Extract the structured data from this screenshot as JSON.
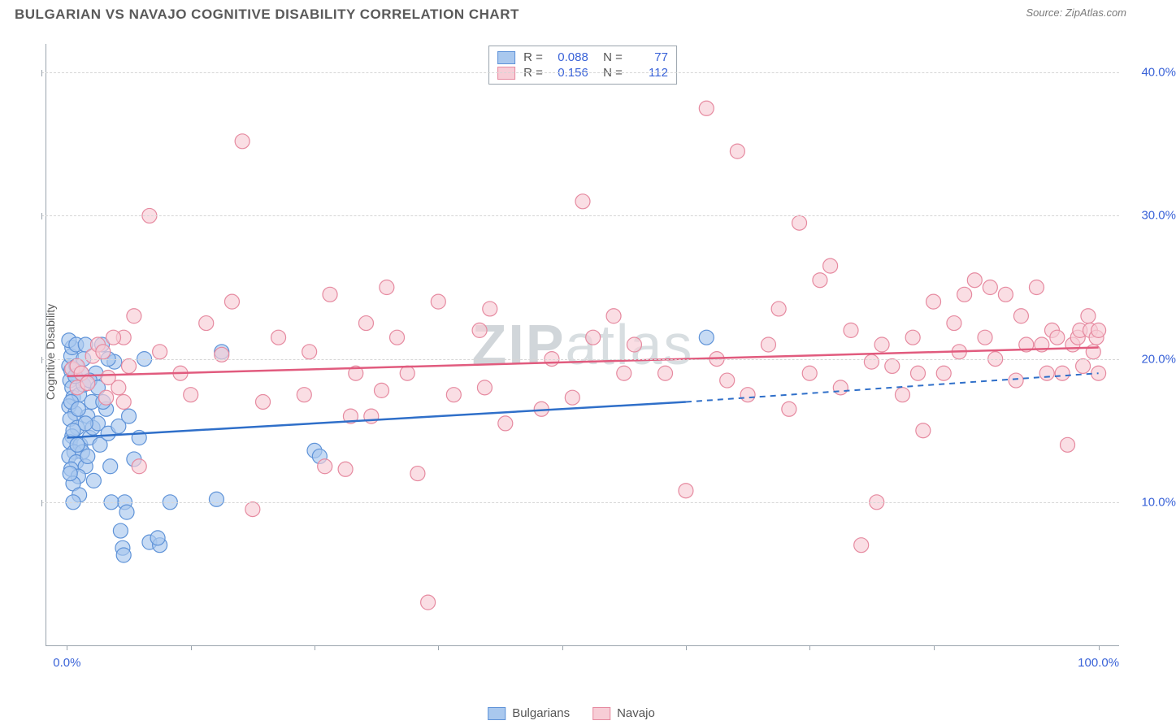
{
  "header": {
    "title": "BULGARIAN VS NAVAJO COGNITIVE DISABILITY CORRELATION CHART",
    "source": "Source: ZipAtlas.com"
  },
  "chart": {
    "type": "scatter",
    "y_axis_label": "Cognitive Disability",
    "watermark": "ZIPatlas",
    "background_color": "#ffffff",
    "grid_color": "#d6d6d6",
    "axis_color": "#9aa4ad",
    "tick_label_color": "#3a63d8",
    "xlim": [
      -2,
      102
    ],
    "ylim": [
      0,
      42
    ],
    "y_ticks": [
      10,
      20,
      30,
      40
    ],
    "y_tick_labels": [
      "10.0%",
      "20.0%",
      "30.0%",
      "40.0%"
    ],
    "x_ticks": [
      0,
      12,
      24,
      36,
      48,
      60,
      72,
      84,
      100
    ],
    "x_tick_labels": {
      "0": "0.0%",
      "100": "100.0%"
    },
    "series": [
      {
        "name": "Bulgarians",
        "marker_fill": "#a9c8ee",
        "marker_stroke": "#5f93d8",
        "marker_radius": 9,
        "line_color": "#2f6fc9",
        "line_width": 2.5,
        "trend_solid": {
          "x1": 0,
          "y1": 14.5,
          "x2": 60,
          "y2": 17.0
        },
        "trend_dashed": {
          "x1": 60,
          "y1": 17.0,
          "x2": 100,
          "y2": 19.0
        },
        "R": "0.088",
        "N": "77",
        "points": [
          [
            0.2,
            19.5
          ],
          [
            0.4,
            19.2
          ],
          [
            0.3,
            18.5
          ],
          [
            0.5,
            18.0
          ],
          [
            0.6,
            17.3
          ],
          [
            0.2,
            16.7
          ],
          [
            0.8,
            16.2
          ],
          [
            0.3,
            15.8
          ],
          [
            1.0,
            15.2
          ],
          [
            0.5,
            14.6
          ],
          [
            0.3,
            14.2
          ],
          [
            1.3,
            14.0
          ],
          [
            0.7,
            13.5
          ],
          [
            0.2,
            13.2
          ],
          [
            1.5,
            13.5
          ],
          [
            0.9,
            12.8
          ],
          [
            0.4,
            12.3
          ],
          [
            1.8,
            12.5
          ],
          [
            1.1,
            11.8
          ],
          [
            0.6,
            11.3
          ],
          [
            2.2,
            14.5
          ],
          [
            2.0,
            16.0
          ],
          [
            2.5,
            15.2
          ],
          [
            2.0,
            13.2
          ],
          [
            1.2,
            10.5
          ],
          [
            0.6,
            10.0
          ],
          [
            3.0,
            15.5
          ],
          [
            3.2,
            14.0
          ],
          [
            3.4,
            21.0
          ],
          [
            4.0,
            14.8
          ],
          [
            4.6,
            19.8
          ],
          [
            5.0,
            15.3
          ],
          [
            5.2,
            8.0
          ],
          [
            5.6,
            10.0
          ],
          [
            5.8,
            9.3
          ],
          [
            6.0,
            16.0
          ],
          [
            7.0,
            14.5
          ],
          [
            7.5,
            20.0
          ],
          [
            8.0,
            7.2
          ],
          [
            9.0,
            7.0
          ],
          [
            10.0,
            10.0
          ],
          [
            14.5,
            10.2
          ],
          [
            15.0,
            20.5
          ],
          [
            24.0,
            13.6
          ],
          [
            24.5,
            13.2
          ],
          [
            62.0,
            21.5
          ],
          [
            1.2,
            17.5
          ],
          [
            1.6,
            18.2
          ],
          [
            2.4,
            17.0
          ],
          [
            2.8,
            19.0
          ],
          [
            0.4,
            20.2
          ],
          [
            0.9,
            19.5
          ],
          [
            1.6,
            20.0
          ],
          [
            0.5,
            20.8
          ],
          [
            0.2,
            21.3
          ],
          [
            3.8,
            16.5
          ],
          [
            1.0,
            14.0
          ],
          [
            2.6,
            11.5
          ],
          [
            1.8,
            15.5
          ],
          [
            4.2,
            12.5
          ],
          [
            3.5,
            17.0
          ],
          [
            0.8,
            18.8
          ],
          [
            1.4,
            19.0
          ],
          [
            5.4,
            6.8
          ],
          [
            5.5,
            6.3
          ],
          [
            8.8,
            7.5
          ],
          [
            4.3,
            10.0
          ],
          [
            2.2,
            18.5
          ],
          [
            0.4,
            17.0
          ],
          [
            0.9,
            21.0
          ],
          [
            1.8,
            21.0
          ],
          [
            6.5,
            13.0
          ],
          [
            0.3,
            12.0
          ],
          [
            0.6,
            15.0
          ],
          [
            1.1,
            16.5
          ],
          [
            3.0,
            18.0
          ],
          [
            4.0,
            20.0
          ]
        ]
      },
      {
        "name": "Navajo",
        "marker_fill": "#f7cdd6",
        "marker_stroke": "#e68aa0",
        "marker_radius": 9,
        "line_color": "#e15b7e",
        "line_width": 2.5,
        "trend_solid": {
          "x1": 0,
          "y1": 18.8,
          "x2": 100,
          "y2": 20.8
        },
        "trend_dashed": null,
        "R": "0.156",
        "N": "112",
        "points": [
          [
            0.5,
            19.3
          ],
          [
            1.0,
            19.5
          ],
          [
            1.4,
            19.0
          ],
          [
            1.0,
            18.0
          ],
          [
            2.5,
            20.2
          ],
          [
            3.0,
            21.0
          ],
          [
            3.8,
            17.3
          ],
          [
            4.0,
            18.7
          ],
          [
            5.0,
            18.0
          ],
          [
            5.5,
            17.0
          ],
          [
            6.0,
            19.5
          ],
          [
            6.5,
            23.0
          ],
          [
            7.0,
            12.5
          ],
          [
            9.0,
            20.5
          ],
          [
            13.5,
            22.5
          ],
          [
            15.0,
            20.3
          ],
          [
            17.0,
            35.2
          ],
          [
            18.0,
            9.5
          ],
          [
            20.5,
            21.5
          ],
          [
            23.0,
            17.5
          ],
          [
            25.0,
            12.5
          ],
          [
            25.5,
            24.5
          ],
          [
            27.0,
            12.3
          ],
          [
            27.5,
            16.0
          ],
          [
            28.0,
            19.0
          ],
          [
            29.0,
            22.5
          ],
          [
            30.5,
            17.8
          ],
          [
            31.0,
            25.0
          ],
          [
            33.0,
            19.0
          ],
          [
            34.0,
            12.0
          ],
          [
            35.0,
            3.0
          ],
          [
            36.0,
            24.0
          ],
          [
            37.5,
            17.5
          ],
          [
            40.0,
            22.0
          ],
          [
            41.0,
            23.5
          ],
          [
            42.5,
            15.5
          ],
          [
            46.0,
            16.5
          ],
          [
            47.0,
            20.0
          ],
          [
            49.0,
            17.3
          ],
          [
            50.0,
            31.0
          ],
          [
            51.0,
            21.5
          ],
          [
            53.0,
            23.0
          ],
          [
            54.0,
            19.0
          ],
          [
            58.0,
            19.0
          ],
          [
            60.0,
            10.8
          ],
          [
            62.0,
            37.5
          ],
          [
            64.0,
            18.5
          ],
          [
            65.0,
            34.5
          ],
          [
            66.0,
            17.5
          ],
          [
            68.0,
            21.0
          ],
          [
            70.0,
            16.5
          ],
          [
            71.0,
            29.5
          ],
          [
            72.0,
            19.0
          ],
          [
            73.0,
            25.5
          ],
          [
            74.0,
            26.5
          ],
          [
            75.0,
            18.0
          ],
          [
            76.0,
            22.0
          ],
          [
            77.0,
            7.0
          ],
          [
            78.5,
            10.0
          ],
          [
            79.0,
            21.0
          ],
          [
            80.0,
            19.5
          ],
          [
            81.0,
            17.5
          ],
          [
            82.0,
            21.5
          ],
          [
            82.5,
            19.0
          ],
          [
            83.0,
            15.0
          ],
          [
            84.0,
            24.0
          ],
          [
            85.0,
            19.0
          ],
          [
            86.0,
            22.5
          ],
          [
            87.0,
            24.5
          ],
          [
            88.0,
            25.5
          ],
          [
            89.0,
            21.5
          ],
          [
            89.5,
            25.0
          ],
          [
            90.0,
            20.0
          ],
          [
            91.0,
            24.5
          ],
          [
            92.0,
            18.5
          ],
          [
            92.5,
            23.0
          ],
          [
            93.0,
            21.0
          ],
          [
            94.0,
            25.0
          ],
          [
            94.5,
            21.0
          ],
          [
            95.0,
            19.0
          ],
          [
            95.5,
            22.0
          ],
          [
            96.0,
            21.5
          ],
          [
            96.5,
            19.0
          ],
          [
            97.0,
            14.0
          ],
          [
            97.5,
            21.0
          ],
          [
            98.0,
            21.5
          ],
          [
            98.2,
            22.0
          ],
          [
            98.5,
            19.5
          ],
          [
            99.0,
            23.0
          ],
          [
            99.2,
            22.0
          ],
          [
            99.5,
            20.5
          ],
          [
            99.8,
            21.5
          ],
          [
            100.0,
            19.0
          ],
          [
            100.0,
            22.0
          ],
          [
            8.0,
            30.0
          ],
          [
            5.5,
            21.5
          ],
          [
            12.0,
            17.5
          ],
          [
            16.0,
            24.0
          ],
          [
            19.0,
            17.0
          ],
          [
            23.5,
            20.5
          ],
          [
            29.5,
            16.0
          ],
          [
            32.0,
            21.5
          ],
          [
            2.0,
            18.3
          ],
          [
            3.5,
            20.5
          ],
          [
            4.5,
            21.5
          ],
          [
            11.0,
            19.0
          ],
          [
            40.5,
            18.0
          ],
          [
            55.0,
            21.0
          ],
          [
            63.0,
            20.0
          ],
          [
            69.0,
            23.5
          ],
          [
            78.0,
            19.8
          ],
          [
            86.5,
            20.5
          ]
        ]
      }
    ]
  },
  "legend": {
    "items": [
      {
        "label": "Bulgarians",
        "fill": "#a9c8ee",
        "stroke": "#5f93d8"
      },
      {
        "label": "Navajo",
        "fill": "#f7cdd6",
        "stroke": "#e68aa0"
      }
    ]
  }
}
